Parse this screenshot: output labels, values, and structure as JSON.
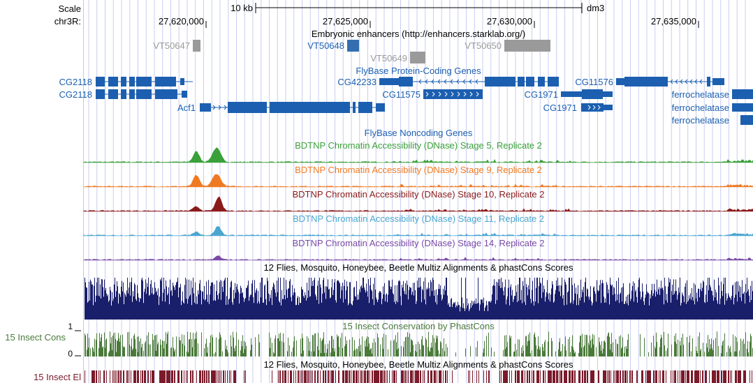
{
  "header": {
    "scale_label": "Scale",
    "chrom_label": "chr3R:",
    "scale_bar_label": "10 kb",
    "assembly": "dm3",
    "positions": [
      "27,620,000",
      "27,625,000",
      "27,630,000",
      "27,635,000"
    ]
  },
  "tracks": {
    "enhancers": {
      "title": "Embryonic enhancers (http://enhancers.starklab.org/)",
      "items": [
        "VT50647",
        "VT50648",
        "VT50649",
        "VT50650"
      ]
    },
    "genes": {
      "title": "FlyBase Protein-Coding Genes",
      "items": [
        "CG2118",
        "CG2118",
        "Acf1",
        "CG42233",
        "CG11575",
        "CG1971",
        "CG1971",
        "CG11576",
        "ferrochelatase",
        "ferrochelatase",
        "ferrochelatase"
      ]
    },
    "noncoding": {
      "title": "FlyBase Noncoding Genes"
    },
    "dnase": [
      {
        "title": "BDTNP Chromatin Accessibility (DNase) Stage 5, Replicate 2",
        "color": "#3aa03a"
      },
      {
        "title": "BDTNP Chromatin Accessibility (DNase) Stage 9, Replicate 2",
        "color": "#ef7a22"
      },
      {
        "title": "BDTNP Chromatin Accessibility (DNase) Stage 10, Replicate 2",
        "color": "#8a1a1a"
      },
      {
        "title": "BDTNP Chromatin Accessibility (DNase) Stage 11, Replicate 2",
        "color": "#4aa6cf"
      },
      {
        "title": "BDTNP Chromatin Accessibility (DNase) Stage 14, Replicate 2",
        "color": "#7a4aa6"
      }
    ],
    "multiz": {
      "title": "12 Flies, Mosquito, Honeybee, Beetle Multiz Alignments & phastCons Scores",
      "color": "#1a1f6b"
    },
    "insect_cons": {
      "title": "15 Insect Conservation by PhastCons",
      "left_label": "15 Insect Cons",
      "max_label": "1",
      "min_label": "0",
      "color": "#4a7a3a"
    },
    "insect_el": {
      "title": "12 Flies, Mosquito, Honeybee, Beetle Multiz Alignments & phastCons Scores",
      "left_label": "15 Insect El",
      "color": "#7a1a2a"
    }
  },
  "colors": {
    "gene": "#1c5fb0",
    "enhancer_gray": "#9a9a9a",
    "grid": "#c9cdf0"
  }
}
